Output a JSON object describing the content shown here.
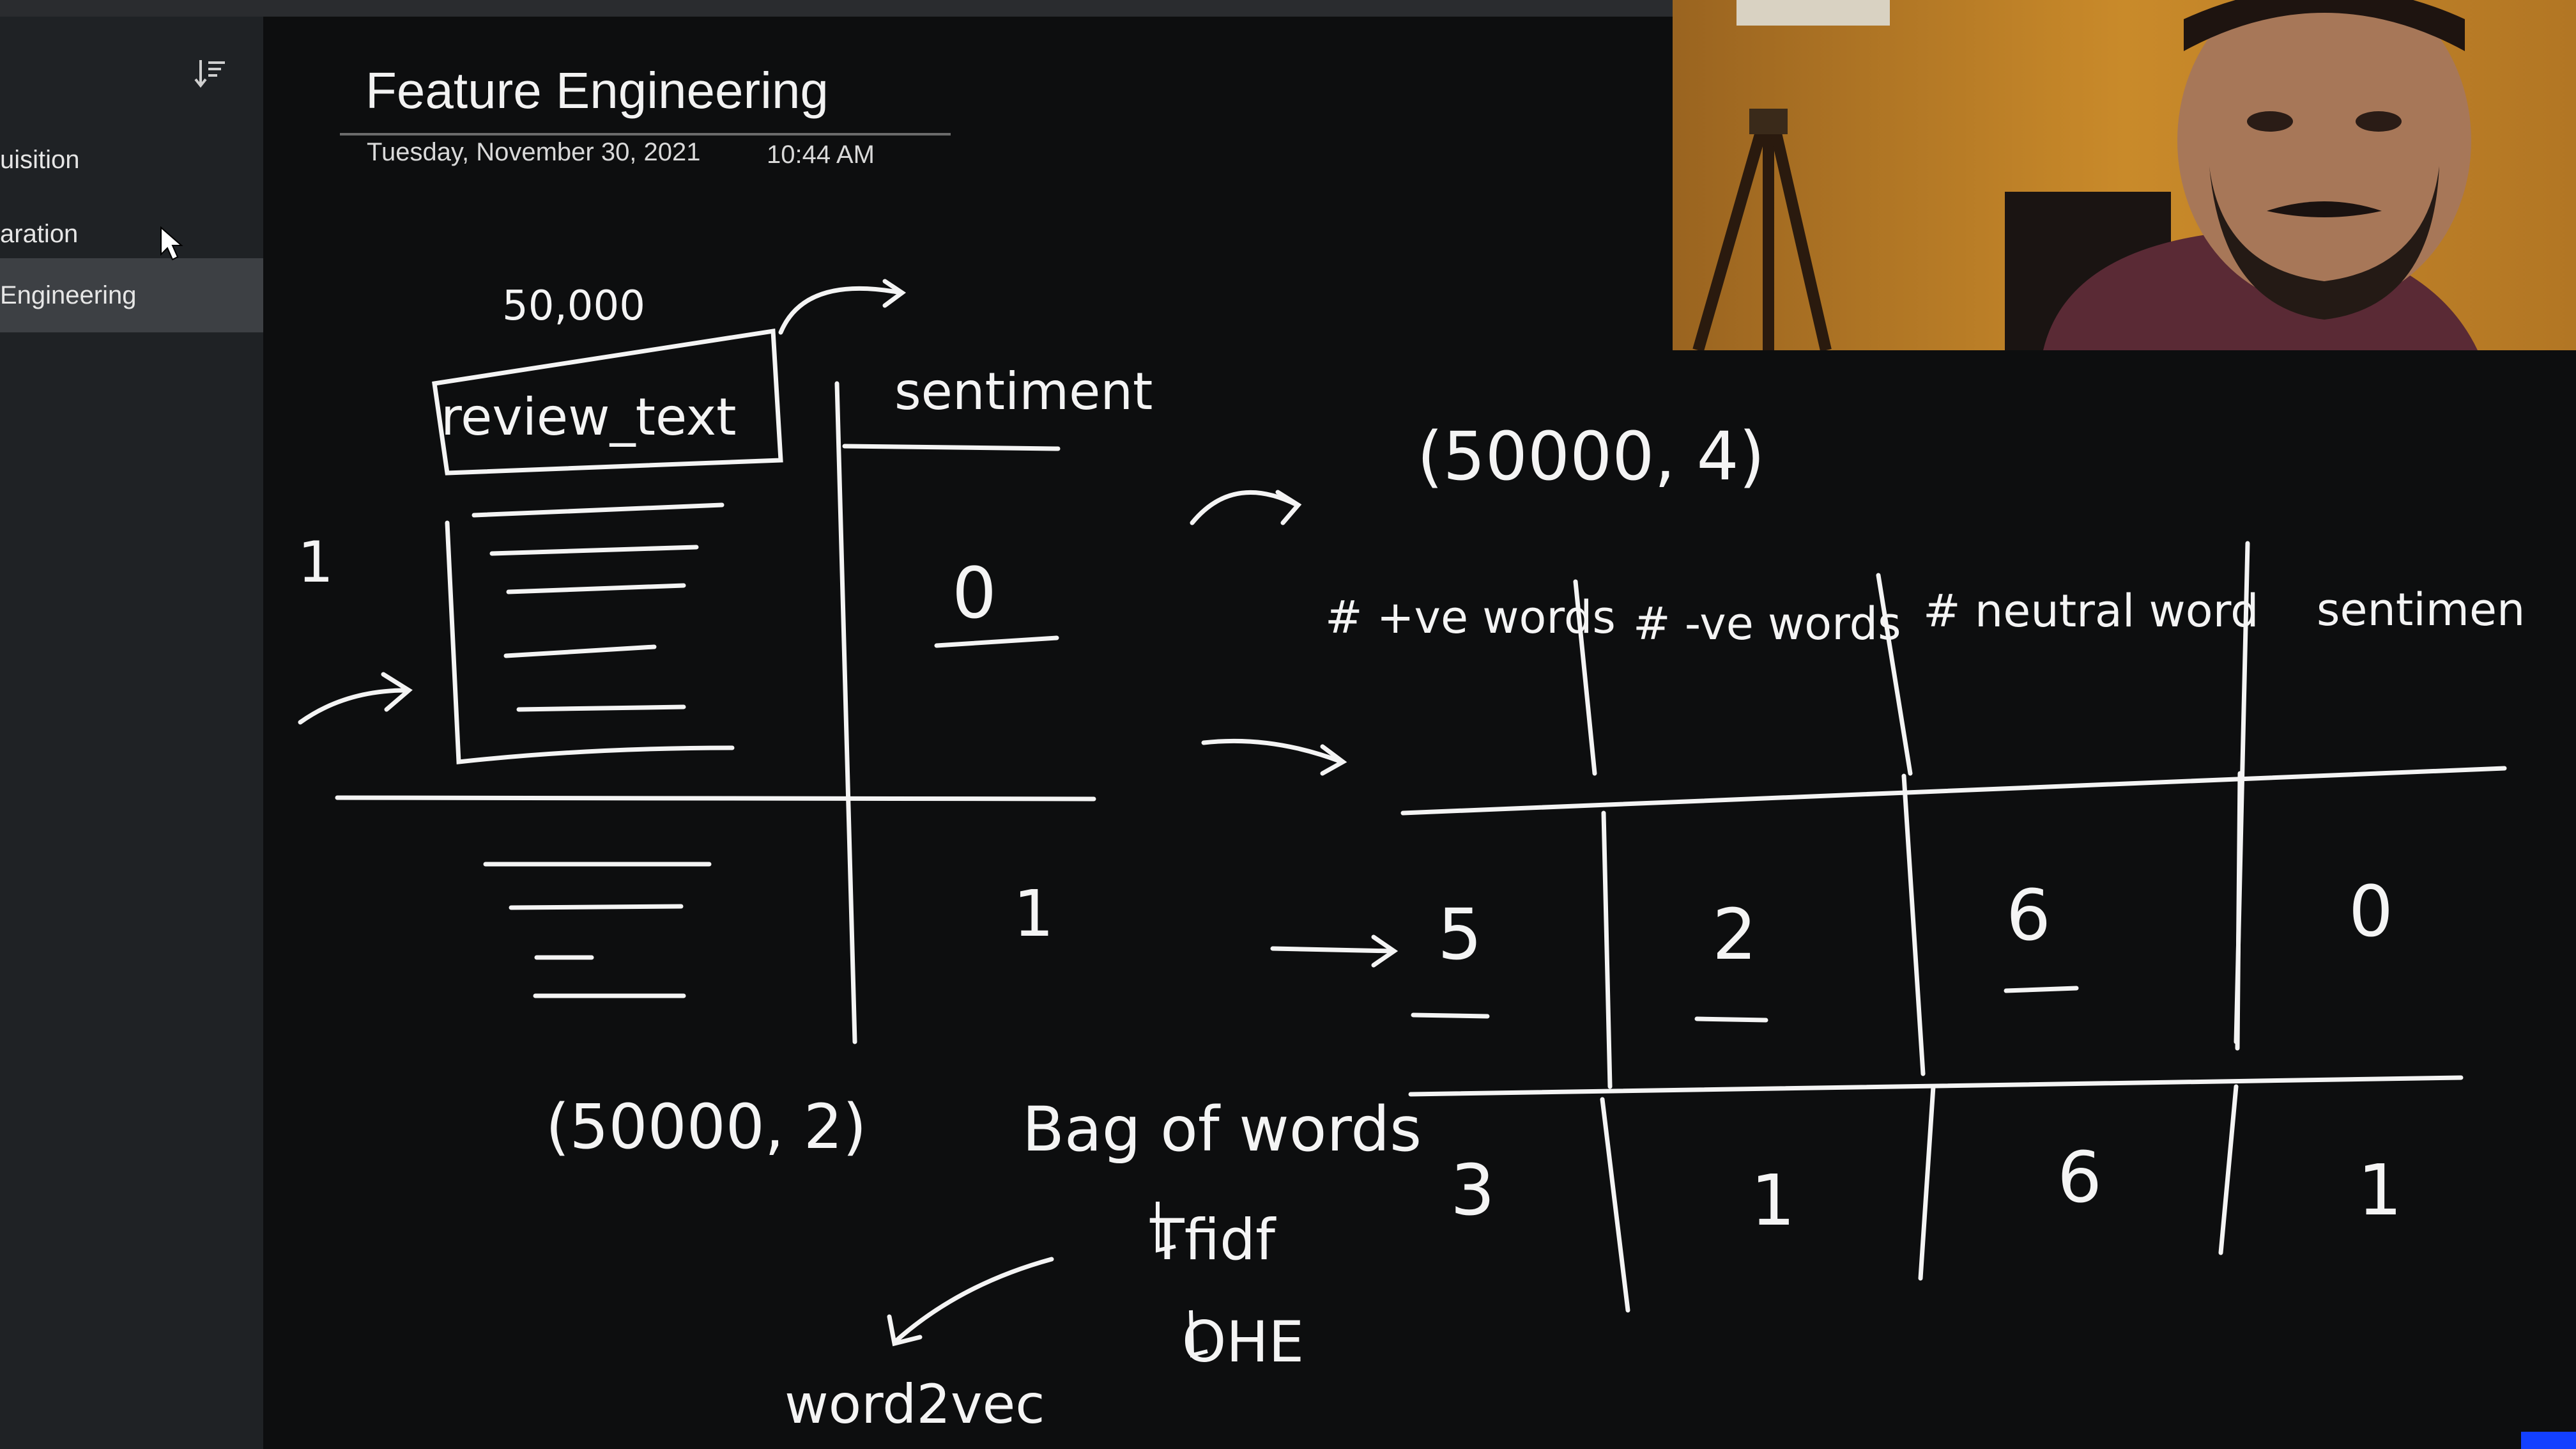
{
  "page": {
    "title": "Feature Engineering",
    "date": "Tuesday, November 30, 2021",
    "time": "10:44 AM"
  },
  "sidebar": {
    "sort_icon": "sort-lines-icon",
    "items": [
      {
        "label": "uisition",
        "active": false
      },
      {
        "label": "aration",
        "active": false
      },
      {
        "label": "Engineering",
        "active": true
      }
    ]
  },
  "notes": {
    "left_table": {
      "count_label": "50,000",
      "col1_header": "review_text",
      "col2_header": "sentiment",
      "row_number": "1",
      "row1_value": "0",
      "row2_value": "1",
      "shape": "(50000, 2)"
    },
    "right_table": {
      "shape": "(50000, 4)",
      "headers": [
        "# +ve words",
        "# -ve words",
        "# neutral word",
        "sentimen"
      ],
      "rows": [
        [
          "5",
          "2",
          "6",
          "0"
        ],
        [
          "3",
          "1",
          "6",
          "1"
        ]
      ]
    },
    "techniques": {
      "bag_of_words": "Bag of words",
      "tfidf": "Tfidf",
      "ohe": "OHE",
      "word2vec": "word2vec"
    }
  },
  "colors": {
    "sidebar_bg": "#1f2225",
    "sidebar_active": "#3d4044",
    "canvas_bg": "#0d0e0f",
    "ink": "#f4f4f4"
  }
}
